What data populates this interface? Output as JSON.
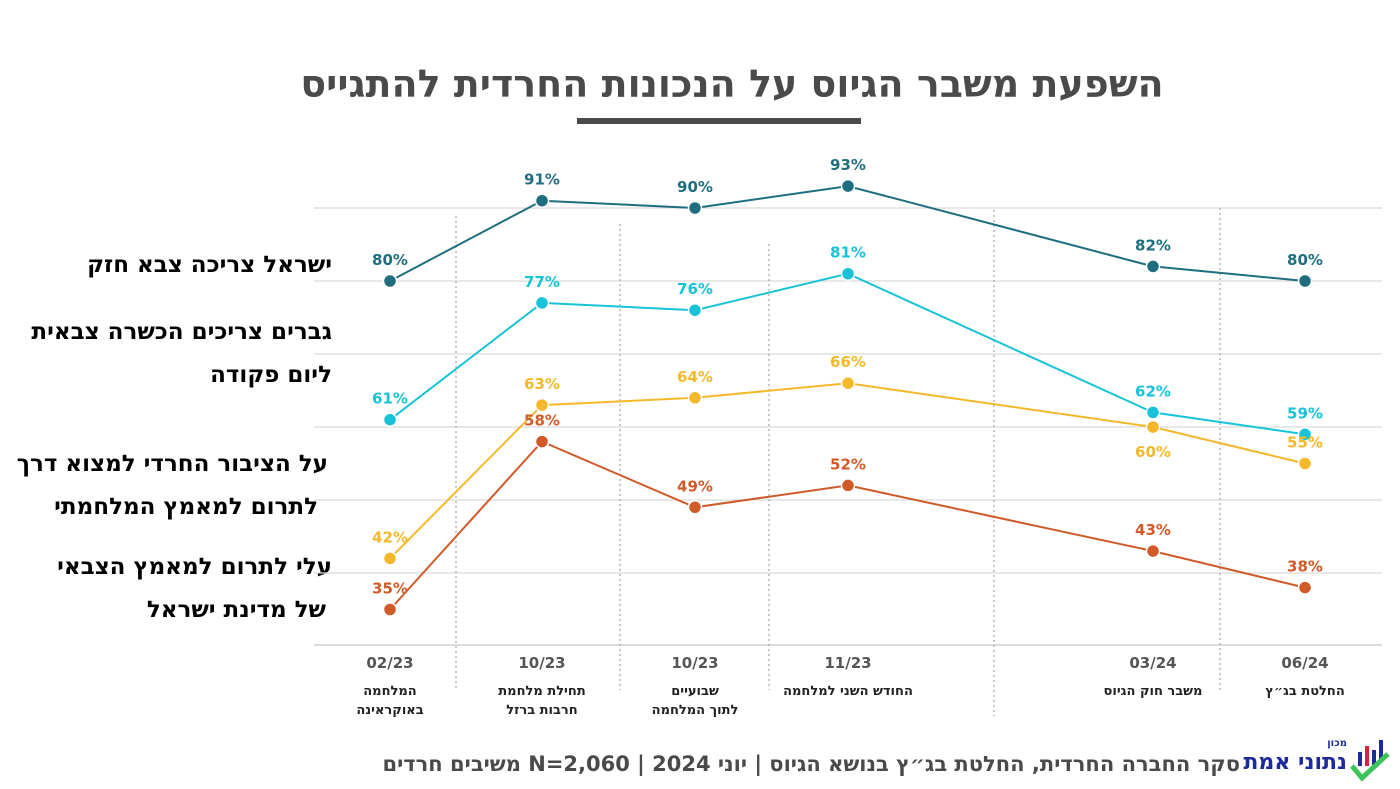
{
  "title": "השפעת משבר הגיוס על הנכונות החרדית להתגייס",
  "footer": "סקר החברה החרדית, החלטת בג״ץ בנושא הגיוס  |  יוני 2024  |  N=2,060 משיבים חרדים",
  "logo": {
    "small": "מכון",
    "name": "נתוני אמת"
  },
  "chart_data": {
    "type": "line",
    "categories": [
      {
        "date": "02/23",
        "event": [
          "המלחמה",
          "באוקראינה"
        ]
      },
      {
        "date": "10/23",
        "event": [
          "תחילת מלחמת",
          "חרבות ברזל"
        ]
      },
      {
        "date": "10/23",
        "event": [
          "שבועיים",
          "לתוך המלחמה"
        ]
      },
      {
        "date": "11/23",
        "event": [
          "החודש השני למלחמה"
        ]
      },
      {
        "date": "03/24",
        "event": [
          "משבר חוק הגיוס"
        ]
      },
      {
        "date": "06/24",
        "event": [
          "החלטת בג״ץ"
        ]
      }
    ],
    "series": [
      {
        "name": [
          "ישראל צריכה צבא חזק"
        ],
        "color": "#1e6e80",
        "values": [
          80,
          91,
          90,
          93,
          82,
          80
        ]
      },
      {
        "name": [
          "גברים צריכים הכשרה צבאית",
          "ליום פקודה"
        ],
        "color": "#17c3d8",
        "values": [
          61,
          77,
          76,
          81,
          62,
          59
        ]
      },
      {
        "name": [
          "על הציבור החרדי למצוא דרך",
          "לתרום למאמץ המלחמתי"
        ],
        "color": "#f5b82a",
        "values": [
          42,
          63,
          64,
          66,
          60,
          55
        ]
      },
      {
        "name": [
          "עלי לתרום למאמץ הצבאי",
          "של מדינת ישראל"
        ],
        "color": "#d05a28",
        "values": [
          35,
          58,
          49,
          52,
          43,
          38
        ]
      }
    ],
    "value_suffix": "%",
    "ylim": [
      30,
      95
    ],
    "grid": true,
    "legend": "left"
  }
}
